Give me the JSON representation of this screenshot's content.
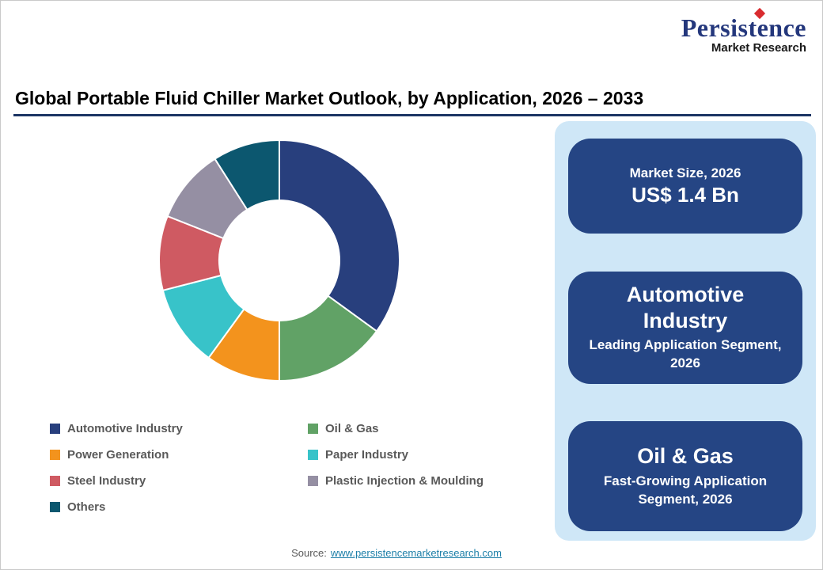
{
  "logo": {
    "wordmark": "Persistence",
    "subtitle": "Market Research",
    "accent_color": "#d92b2f",
    "navy_color": "#24377c"
  },
  "title": "Global Portable Fluid Chiller Market Outlook, by Application, 2026 – 2033",
  "chart_data": {
    "type": "pie",
    "donut": true,
    "start_angle_deg": 0,
    "direction": "clockwise",
    "title": "Global Portable Fluid Chiller Market Outlook, by Application, 2026 – 2033",
    "units": "% share (estimated from arc angles)",
    "segments": [
      {
        "label": "Automotive Industry",
        "value": 35,
        "color": "#283f7d"
      },
      {
        "label": "Oil & Gas",
        "value": 15,
        "color": "#61a266"
      },
      {
        "label": "Power Generation",
        "value": 10,
        "color": "#f3931d"
      },
      {
        "label": "Paper Industry",
        "value": 11,
        "color": "#38c3c9"
      },
      {
        "label": "Steel Industry",
        "value": 10,
        "color": "#cf5a62"
      },
      {
        "label": "Plastic Injection & Moulding",
        "value": 10,
        "color": "#958fa3"
      },
      {
        "label": "Others",
        "value": 9,
        "color": "#0c576f"
      }
    ],
    "legend_position": "bottom-left",
    "legend_columns": [
      [
        "Automotive Industry",
        "Power Generation",
        "Steel Industry",
        "Others"
      ],
      [
        "Oil & Gas",
        "Paper Industry",
        "Plastic Injection & Moulding"
      ]
    ]
  },
  "cards": [
    {
      "line1": "Market Size, 2026",
      "line2": "US$ 1.4 Bn"
    },
    {
      "title": "Automotive Industry",
      "subtitle": "Leading Application Segment, 2026"
    },
    {
      "title": "Oil & Gas",
      "subtitle": "Fast-Growing Application Segment, 2026"
    }
  ],
  "source": {
    "label": "Source:",
    "link": "www.persistencemarketresearch.com"
  }
}
